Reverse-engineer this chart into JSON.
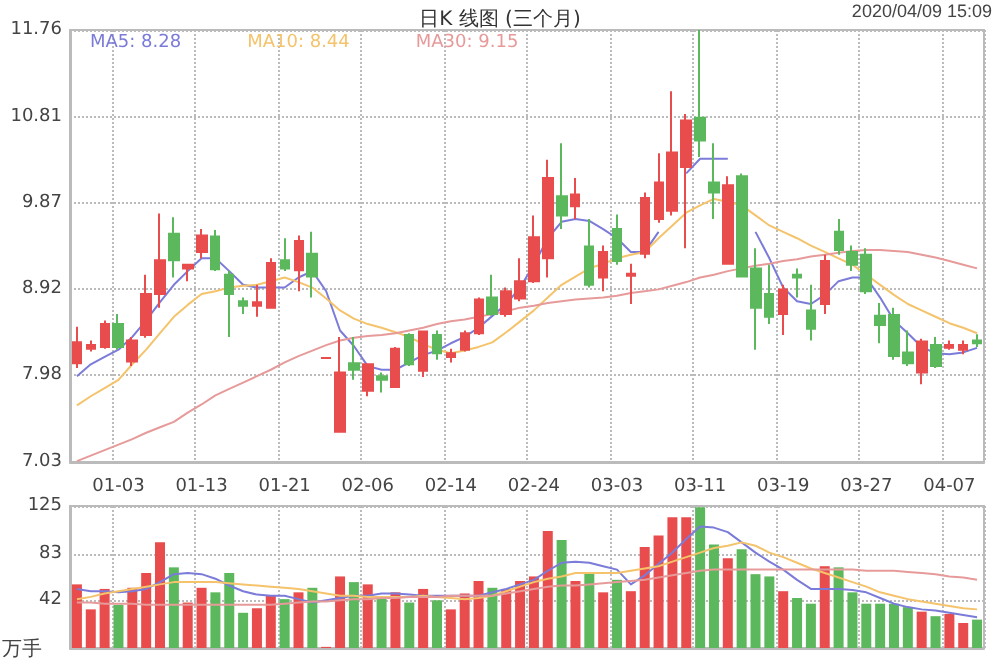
{
  "chart_data": [
    {
      "type": "candlestick",
      "title": "日K 线图 (三个月)",
      "annotations": [
        "2020/04/09 15:09"
      ],
      "categories": [
        null,
        null,
        null,
        "01-03",
        null,
        null,
        null,
        null,
        null,
        "01-13",
        null,
        null,
        null,
        null,
        null,
        "01-21",
        null,
        null,
        null,
        null,
        null,
        "02-06",
        null,
        null,
        null,
        null,
        null,
        "02-14",
        null,
        null,
        null,
        null,
        null,
        "02-24",
        null,
        null,
        null,
        null,
        null,
        "03-03",
        null,
        null,
        null,
        null,
        null,
        "03-11",
        null,
        null,
        null,
        null,
        null,
        "03-19",
        null,
        null,
        null,
        null,
        null,
        "03-27",
        null,
        null,
        null,
        null,
        null,
        "04-07",
        null,
        null
      ],
      "ohlc": [
        [
          8.11,
          8.51,
          8.06,
          8.34
        ],
        [
          8.27,
          8.36,
          8.24,
          8.31
        ],
        [
          8.29,
          8.58,
          8.27,
          8.54
        ],
        [
          8.54,
          8.65,
          8.26,
          8.29
        ],
        [
          8.13,
          8.4,
          8.08,
          8.36
        ],
        [
          8.42,
          9.08,
          8.39,
          8.87
        ],
        [
          8.87,
          9.75,
          8.72,
          9.24
        ],
        [
          9.53,
          9.71,
          9.05,
          9.24
        ],
        [
          9.15,
          9.2,
          9.01,
          9.19
        ],
        [
          9.33,
          9.58,
          9.26,
          9.51
        ],
        [
          9.5,
          9.57,
          9.12,
          9.14
        ],
        [
          9.08,
          9.12,
          8.4,
          8.87
        ],
        [
          8.79,
          8.83,
          8.65,
          8.74
        ],
        [
          8.74,
          8.97,
          8.62,
          8.78
        ],
        [
          8.72,
          9.26,
          8.71,
          9.21
        ],
        [
          9.24,
          9.48,
          9.12,
          9.15
        ],
        [
          9.13,
          9.51,
          8.9,
          9.45
        ],
        [
          9.31,
          9.55,
          8.83,
          9.06
        ],
        [
          8.17,
          8.17,
          8.17,
          8.17
        ],
        [
          7.36,
          8.4,
          7.36,
          8.01
        ],
        [
          8.11,
          8.4,
          7.93,
          8.04
        ],
        [
          7.81,
          8.11,
          7.75,
          8.1
        ],
        [
          7.97,
          8.01,
          7.79,
          7.93
        ],
        [
          7.85,
          8.29,
          7.84,
          8.27
        ],
        [
          8.42,
          8.44,
          8.08,
          8.1
        ],
        [
          8.03,
          8.47,
          7.96,
          8.46
        ],
        [
          8.42,
          8.47,
          8.15,
          8.22
        ],
        [
          8.18,
          8.27,
          8.12,
          8.22
        ],
        [
          8.26,
          8.47,
          8.24,
          8.44
        ],
        [
          8.44,
          8.83,
          8.42,
          8.81
        ],
        [
          8.83,
          9.08,
          8.63,
          8.65
        ],
        [
          8.65,
          8.94,
          8.62,
          8.9
        ],
        [
          8.82,
          9.26,
          8.79,
          9.01
        ],
        [
          9.01,
          9.73,
          8.99,
          9.49
        ],
        [
          9.26,
          10.34,
          9.05,
          10.14
        ],
        [
          9.94,
          10.52,
          9.58,
          9.73
        ],
        [
          9.83,
          10.14,
          9.69,
          9.96
        ],
        [
          9.39,
          9.69,
          8.94,
          8.97
        ],
        [
          9.05,
          9.4,
          8.9,
          9.33
        ],
        [
          9.58,
          9.74,
          9.19,
          9.23
        ],
        [
          9.07,
          9.2,
          8.76,
          9.09
        ],
        [
          9.31,
          9.98,
          9.26,
          9.92
        ],
        [
          9.69,
          10.41,
          9.65,
          10.09
        ],
        [
          9.78,
          11.09,
          9.73,
          10.42
        ],
        [
          10.26,
          10.84,
          9.37,
          10.77
        ],
        [
          10.8,
          11.76,
          10.37,
          10.55
        ],
        [
          10.09,
          10.52,
          9.69,
          9.98
        ],
        [
          9.2,
          10.16,
          9.19,
          10.06
        ],
        [
          10.16,
          10.19,
          9.05,
          9.06
        ],
        [
          9.15,
          9.37,
          8.26,
          8.72
        ],
        [
          8.87,
          9.19,
          8.54,
          8.62
        ],
        [
          8.65,
          8.97,
          8.42,
          8.92
        ],
        [
          9.08,
          9.15,
          8.83,
          9.05
        ],
        [
          8.69,
          8.97,
          8.36,
          8.49
        ],
        [
          8.76,
          9.3,
          8.65,
          9.23
        ],
        [
          9.55,
          9.69,
          9.3,
          9.35
        ],
        [
          9.33,
          9.4,
          9.12,
          9.19
        ],
        [
          9.3,
          9.37,
          8.87,
          8.9
        ],
        [
          8.63,
          8.77,
          8.33,
          8.53
        ],
        [
          8.64,
          8.72,
          8.15,
          8.19
        ],
        [
          8.23,
          8.47,
          8.08,
          8.11
        ],
        [
          8.01,
          8.38,
          7.88,
          8.35
        ],
        [
          8.31,
          8.4,
          8.06,
          8.08
        ],
        [
          8.28,
          8.36,
          8.26,
          8.31
        ],
        [
          8.26,
          8.36,
          8.21,
          8.31
        ],
        [
          8.36,
          8.43,
          8.29,
          8.33
        ]
      ],
      "colors": [
        "#e84c4c",
        "#e84c4c",
        "#e84c4c",
        "#5cb85c",
        "#e84c4c",
        "#e84c4c",
        "#e84c4c",
        "#5cb85c",
        "#e84c4c",
        "#e84c4c",
        "#5cb85c",
        "#5cb85c",
        "#5cb85c",
        "#e84c4c",
        "#e84c4c",
        "#5cb85c",
        "#e84c4c",
        "#5cb85c",
        "#e84c4c",
        "#e84c4c",
        "#5cb85c",
        "#e84c4c",
        "#5cb85c",
        "#e84c4c",
        "#5cb85c",
        "#e84c4c",
        "#5cb85c",
        "#e84c4c",
        "#e84c4c",
        "#e84c4c",
        "#5cb85c",
        "#e84c4c",
        "#e84c4c",
        "#e84c4c",
        "#e84c4c",
        "#5cb85c",
        "#e84c4c",
        "#5cb85c",
        "#e84c4c",
        "#5cb85c",
        "#e84c4c",
        "#e84c4c",
        "#e84c4c",
        "#e84c4c",
        "#e84c4c",
        "#5cb85c",
        "#5cb85c",
        "#e84c4c",
        "#5cb85c",
        "#5cb85c",
        "#5cb85c",
        "#e84c4c",
        "#5cb85c",
        "#5cb85c",
        "#e84c4c",
        "#5cb85c",
        "#5cb85c",
        "#5cb85c",
        "#5cb85c",
        "#5cb85c",
        "#5cb85c",
        "#e84c4c",
        "#5cb85c",
        "#e84c4c",
        "#e84c4c",
        "#5cb85c"
      ],
      "series": [
        {
          "name": "MA5: 8.28",
          "type": "line",
          "color": "#7b7bd9",
          "values": [
            7.97,
            8.1,
            8.18,
            8.26,
            8.4,
            8.58,
            8.78,
            8.97,
            9.12,
            9.26,
            9.26,
            9.12,
            8.97,
            8.94,
            8.94,
            8.94,
            9.05,
            9.12,
            8.9,
            8.47,
            8.3,
            8.08,
            8.04,
            8.04,
            8.12,
            8.2,
            8.25,
            8.33,
            8.4,
            8.5,
            8.63,
            8.76,
            8.94,
            9.19,
            9.48,
            9.66,
            9.69,
            9.67,
            9.58,
            9.48,
            9.33,
            9.33,
            9.55,
            null,
            10.19,
            10.35,
            10.35,
            10.35,
            null,
            9.55,
            9.26,
            8.94,
            8.79,
            8.76,
            8.86,
            9.01,
            9.05,
            9.05,
            8.83,
            8.58,
            8.44,
            8.29,
            8.22,
            8.21,
            8.23,
            8.28
          ]
        },
        {
          "name": "MA10: 8.44",
          "type": "line",
          "color": "#f4c36b",
          "values": [
            7.65,
            7.75,
            7.84,
            7.93,
            8.1,
            8.26,
            8.44,
            8.62,
            8.75,
            8.87,
            8.9,
            8.94,
            8.96,
            8.97,
            9.01,
            9.05,
            9.0,
            8.94,
            8.82,
            8.69,
            8.6,
            8.54,
            8.5,
            8.45,
            8.4,
            8.32,
            8.26,
            8.22,
            8.25,
            8.29,
            8.34,
            8.45,
            8.57,
            8.69,
            8.83,
            8.97,
            9.06,
            9.15,
            9.2,
            9.26,
            9.3,
            9.33,
            9.48,
            9.62,
            9.76,
            9.84,
            9.91,
            9.88,
            9.84,
            9.73,
            9.62,
            9.55,
            9.48,
            9.4,
            9.33,
            9.26,
            9.19,
            9.08,
            8.97,
            8.86,
            8.76,
            8.69,
            8.62,
            8.55,
            8.5,
            8.44
          ]
        },
        {
          "name": "MA30: 9.15",
          "type": "line",
          "color": "#e79a9a",
          "values": [
            7.04,
            7.1,
            7.16,
            7.22,
            7.28,
            7.35,
            7.41,
            7.47,
            7.57,
            7.66,
            7.76,
            7.83,
            7.9,
            7.97,
            8.04,
            8.12,
            8.19,
            8.25,
            8.31,
            8.36,
            8.39,
            8.41,
            8.42,
            8.44,
            8.47,
            8.5,
            8.54,
            8.57,
            8.59,
            8.62,
            8.65,
            8.68,
            8.72,
            8.74,
            8.77,
            8.79,
            8.81,
            8.82,
            8.83,
            8.85,
            8.88,
            8.9,
            8.92,
            8.96,
            9.0,
            9.05,
            9.08,
            9.12,
            9.15,
            9.18,
            9.2,
            9.23,
            9.25,
            9.28,
            9.3,
            9.32,
            9.34,
            9.35,
            9.35,
            9.34,
            9.33,
            9.3,
            9.27,
            9.23,
            9.19,
            9.15
          ]
        }
      ],
      "ylim": [
        7.03,
        11.76
      ],
      "yticks": [
        7.03,
        7.98,
        8.92,
        9.87,
        10.81,
        11.76
      ],
      "grid": true,
      "legend": "top left",
      "marker": "none"
    },
    {
      "type": "bar",
      "ylabel": "万手",
      "categories": [
        null,
        null,
        null,
        null,
        null,
        null,
        null,
        null,
        null,
        null,
        null,
        null,
        null,
        null,
        null,
        null,
        null,
        null,
        null,
        null,
        null,
        null,
        null,
        null,
        null,
        null,
        null,
        null,
        null,
        null,
        null,
        null,
        null,
        null,
        null,
        null,
        null,
        null,
        null,
        null,
        null,
        null,
        null,
        null,
        null,
        null,
        null,
        null,
        null,
        null,
        null,
        null,
        null,
        null,
        null,
        null,
        null,
        null,
        null,
        null,
        null,
        null,
        null,
        null,
        null,
        null
      ],
      "series": [
        {
          "type": "bar",
          "values": [
            56,
            34,
            52,
            38,
            53,
            66,
            93,
            71,
            40,
            53,
            49,
            66,
            31,
            35,
            46,
            43,
            49,
            53,
            1,
            63,
            58,
            56,
            44,
            49,
            40,
            52,
            42,
            34,
            48,
            59,
            53,
            52,
            59,
            63,
            103,
            95,
            59,
            66,
            49,
            60,
            50,
            89,
            99,
            115,
            115,
            124,
            91,
            79,
            87,
            65,
            63,
            50,
            44,
            39,
            72,
            71,
            49,
            39,
            39,
            39,
            36,
            32,
            28,
            30,
            22,
            25
          ],
          "colors": [
            "#e84c4c",
            "#e84c4c",
            "#e84c4c",
            "#5cb85c",
            "#e84c4c",
            "#e84c4c",
            "#e84c4c",
            "#5cb85c",
            "#e84c4c",
            "#e84c4c",
            "#5cb85c",
            "#5cb85c",
            "#5cb85c",
            "#e84c4c",
            "#e84c4c",
            "#5cb85c",
            "#e84c4c",
            "#5cb85c",
            "#e84c4c",
            "#e84c4c",
            "#5cb85c",
            "#e84c4c",
            "#5cb85c",
            "#e84c4c",
            "#5cb85c",
            "#e84c4c",
            "#5cb85c",
            "#e84c4c",
            "#e84c4c",
            "#e84c4c",
            "#5cb85c",
            "#e84c4c",
            "#e84c4c",
            "#e84c4c",
            "#e84c4c",
            "#5cb85c",
            "#e84c4c",
            "#5cb85c",
            "#e84c4c",
            "#5cb85c",
            "#e84c4c",
            "#e84c4c",
            "#e84c4c",
            "#e84c4c",
            "#e84c4c",
            "#5cb85c",
            "#5cb85c",
            "#e84c4c",
            "#5cb85c",
            "#5cb85c",
            "#5cb85c",
            "#e84c4c",
            "#5cb85c",
            "#5cb85c",
            "#e84c4c",
            "#5cb85c",
            "#5cb85c",
            "#5cb85c",
            "#5cb85c",
            "#5cb85c",
            "#5cb85c",
            "#e84c4c",
            "#5cb85c",
            "#e84c4c",
            "#e84c4c",
            "#5cb85c"
          ]
        },
        {
          "type": "line",
          "color": "#7b7bd9",
          "values": [
            52,
            50,
            50,
            49,
            50,
            52,
            58,
            65,
            66,
            65,
            61,
            55,
            50,
            47,
            46,
            46,
            43,
            40,
            42,
            44,
            46,
            46,
            48,
            48,
            47,
            46,
            46,
            46,
            46,
            46,
            49,
            52,
            56,
            60,
            68,
            75,
            76,
            75,
            72,
            69,
            56,
            64,
            74,
            84,
            96,
            107,
            106,
            102,
            93,
            84,
            76,
            69,
            60,
            52,
            52,
            52,
            51,
            49,
            44,
            39,
            36,
            34,
            33,
            31,
            29,
            27
          ]
        },
        {
          "type": "line",
          "color": "#f4c36b",
          "values": [
            43,
            45,
            48,
            50,
            52,
            54,
            56,
            58,
            58,
            58,
            58,
            57,
            56,
            55,
            54,
            53,
            52,
            50,
            48,
            46,
            46,
            45,
            45,
            45,
            45,
            46,
            45,
            44,
            43,
            44,
            46,
            50,
            54,
            58,
            61,
            63,
            66,
            66,
            66,
            66,
            68,
            70,
            72,
            76,
            80,
            84,
            88,
            90,
            93,
            90,
            84,
            80,
            75,
            70,
            66,
            62,
            58,
            54,
            49,
            46,
            43,
            41,
            39,
            37,
            35,
            34
          ]
        },
        {
          "type": "line",
          "color": "#e79a9a",
          "values": [
            40,
            40,
            39,
            39,
            39,
            38,
            38,
            38,
            38,
            38,
            38,
            38,
            38,
            38,
            38,
            39,
            40,
            41,
            41,
            42,
            43,
            43,
            44,
            44,
            45,
            45,
            45,
            46,
            46,
            46,
            46,
            48,
            50,
            52,
            54,
            55,
            55,
            56,
            57,
            58,
            59,
            60,
            62,
            64,
            66,
            68,
            69,
            69,
            69,
            69,
            69,
            69,
            69,
            69,
            69,
            69,
            69,
            68,
            68,
            68,
            67,
            66,
            65,
            63,
            62,
            60
          ]
        }
      ],
      "ylim": [
        0,
        125
      ],
      "yticks": [
        42,
        83,
        125
      ],
      "grid": true,
      "tick_labels": "y",
      "marker": "none"
    }
  ]
}
